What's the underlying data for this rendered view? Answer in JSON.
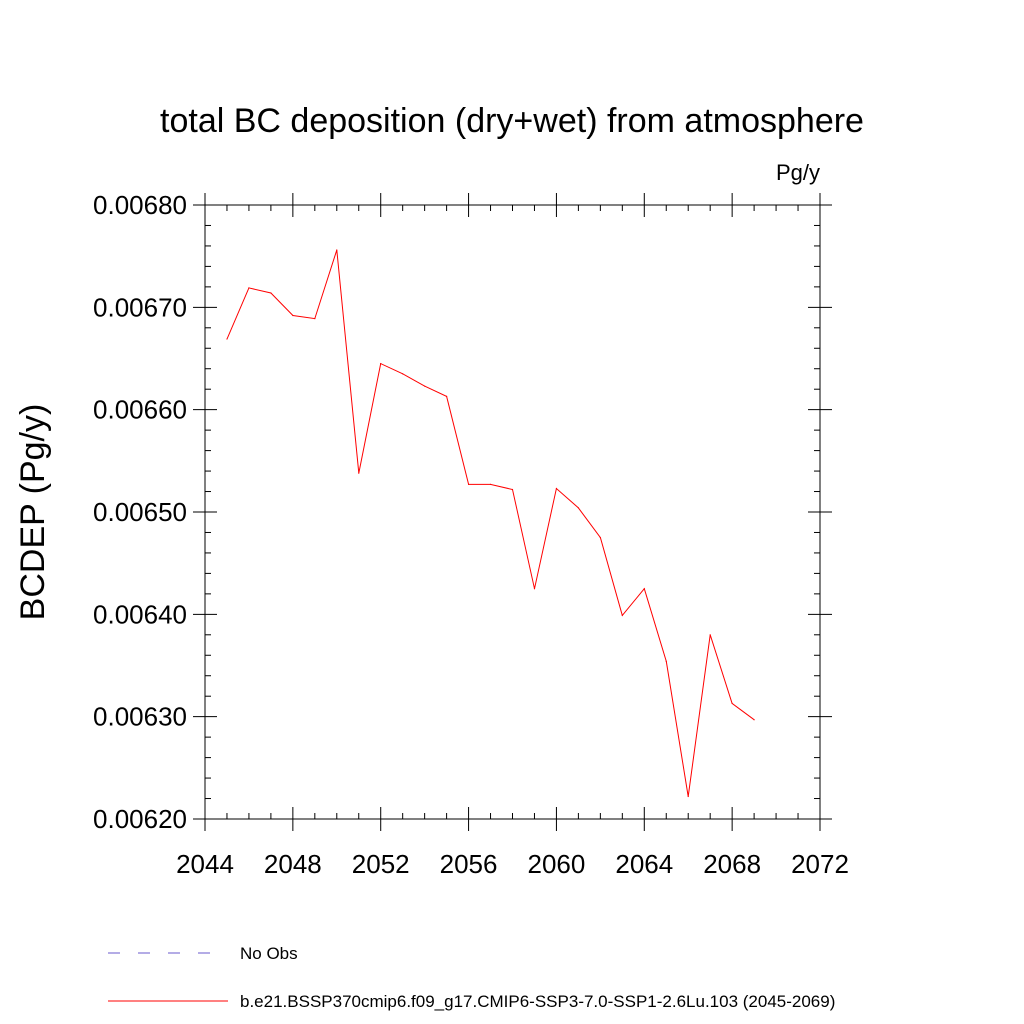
{
  "chart_data": {
    "type": "line",
    "title": "total BC deposition (dry+wet) from atmosphere",
    "units": "Pg/y",
    "ylabel": "BCDEP  (Pg/y)",
    "xlabel": "",
    "xlim": [
      2044,
      2072
    ],
    "ylim": [
      0.0062,
      0.0068
    ],
    "xticks": [
      2044,
      2048,
      2052,
      2056,
      2060,
      2064,
      2068,
      2072
    ],
    "xtick_labels": [
      "2044",
      "2048",
      "2052",
      "2056",
      "2060",
      "2064",
      "2068",
      "2072"
    ],
    "yticks": [
      0.0062,
      0.0063,
      0.0064,
      0.0065,
      0.0066,
      0.0067,
      0.0068
    ],
    "ytick_labels": [
      "0.00620",
      "0.00630",
      "0.00640",
      "0.00650",
      "0.00660",
      "0.00670",
      "0.00680"
    ],
    "grid": false,
    "series": [
      {
        "name": "b.e21.BSSP370cmip6.f09_g17.CMIP6-SSP3-7.0-SSP1-2.6Lu.103 (2045-2069)",
        "color": "#ff0000",
        "style": "solid",
        "x": [
          2045,
          2046,
          2047,
          2048,
          2049,
          2050,
          2051,
          2052,
          2053,
          2054,
          2055,
          2056,
          2057,
          2058,
          2059,
          2060,
          2061,
          2062,
          2063,
          2064,
          2065,
          2066,
          2067,
          2068,
          2069
        ],
        "values": [
          0.006669,
          0.006719,
          0.006714,
          0.006692,
          0.006689,
          0.006756,
          0.006538,
          0.006645,
          0.006635,
          0.006623,
          0.006613,
          0.006527,
          0.006527,
          0.006522,
          0.006425,
          0.006523,
          0.006504,
          0.006475,
          0.006399,
          0.006425,
          0.006354,
          0.006222,
          0.00638,
          0.006313,
          0.006297
        ]
      }
    ],
    "legend": [
      {
        "label": "No Obs",
        "color": "#6a5acd",
        "style": "dashed"
      },
      {
        "label": "b.e21.BSSP370cmip6.f09_g17.CMIP6-SSP3-7.0-SSP1-2.6Lu.103 (2045-2069)",
        "color": "#ff0000",
        "style": "solid"
      }
    ],
    "legend_placement": "bottom"
  }
}
